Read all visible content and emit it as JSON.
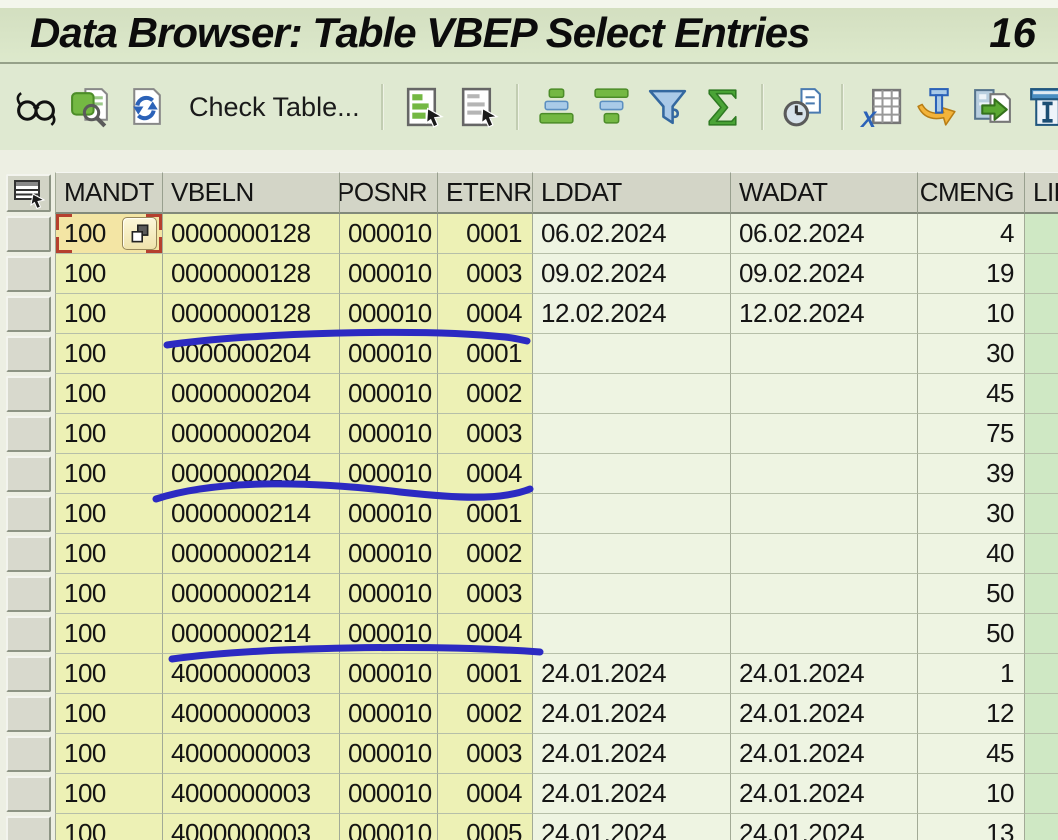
{
  "title": {
    "text": "Data Browser: Table VBEP Select Entries",
    "count": "16"
  },
  "toolbar": {
    "check_table_label": "Check Table...",
    "icon_groups": [
      [
        "display-glasses",
        "find",
        "refresh"
      ],
      [
        "choose-details",
        "display-details"
      ],
      [
        "sort-ascending",
        "sort-descending",
        "filter",
        "sum"
      ],
      [
        "refresh-interval"
      ],
      [
        "excel-view",
        "word-processing",
        "local-file",
        "text-insert"
      ]
    ]
  },
  "table": {
    "columns": [
      {
        "key": "mandt",
        "label": "MANDT"
      },
      {
        "key": "vbeln",
        "label": "VBELN"
      },
      {
        "key": "posnr",
        "label": "POSNR"
      },
      {
        "key": "etenr",
        "label": "ETENR"
      },
      {
        "key": "lddat",
        "label": "LDDAT"
      },
      {
        "key": "wadat",
        "label": "WADAT"
      },
      {
        "key": "cmeng",
        "label": "CMENG"
      },
      {
        "key": "lifsp",
        "label": "LIF"
      }
    ],
    "rows": [
      {
        "mandt": "100",
        "vbeln": "0000000128",
        "posnr": "000010",
        "etenr": "0001",
        "lddat": "06.02.2024",
        "wadat": "06.02.2024",
        "cmeng": "4",
        "lifsp": ""
      },
      {
        "mandt": "100",
        "vbeln": "0000000128",
        "posnr": "000010",
        "etenr": "0003",
        "lddat": "09.02.2024",
        "wadat": "09.02.2024",
        "cmeng": "19",
        "lifsp": ""
      },
      {
        "mandt": "100",
        "vbeln": "0000000128",
        "posnr": "000010",
        "etenr": "0004",
        "lddat": "12.02.2024",
        "wadat": "12.02.2024",
        "cmeng": "10",
        "lifsp": ""
      },
      {
        "mandt": "100",
        "vbeln": "0000000204",
        "posnr": "000010",
        "etenr": "0001",
        "lddat": "",
        "wadat": "",
        "cmeng": "30",
        "lifsp": ""
      },
      {
        "mandt": "100",
        "vbeln": "0000000204",
        "posnr": "000010",
        "etenr": "0002",
        "lddat": "",
        "wadat": "",
        "cmeng": "45",
        "lifsp": ""
      },
      {
        "mandt": "100",
        "vbeln": "0000000204",
        "posnr": "000010",
        "etenr": "0003",
        "lddat": "",
        "wadat": "",
        "cmeng": "75",
        "lifsp": ""
      },
      {
        "mandt": "100",
        "vbeln": "0000000204",
        "posnr": "000010",
        "etenr": "0004",
        "lddat": "",
        "wadat": "",
        "cmeng": "39",
        "lifsp": ""
      },
      {
        "mandt": "100",
        "vbeln": "0000000214",
        "posnr": "000010",
        "etenr": "0001",
        "lddat": "",
        "wadat": "",
        "cmeng": "30",
        "lifsp": ""
      },
      {
        "mandt": "100",
        "vbeln": "0000000214",
        "posnr": "000010",
        "etenr": "0002",
        "lddat": "",
        "wadat": "",
        "cmeng": "40",
        "lifsp": ""
      },
      {
        "mandt": "100",
        "vbeln": "0000000214",
        "posnr": "000010",
        "etenr": "0003",
        "lddat": "",
        "wadat": "",
        "cmeng": "50",
        "lifsp": ""
      },
      {
        "mandt": "100",
        "vbeln": "0000000214",
        "posnr": "000010",
        "etenr": "0004",
        "lddat": "",
        "wadat": "",
        "cmeng": "50",
        "lifsp": ""
      },
      {
        "mandt": "100",
        "vbeln": "4000000003",
        "posnr": "000010",
        "etenr": "0001",
        "lddat": "24.01.2024",
        "wadat": "24.01.2024",
        "cmeng": "1",
        "lifsp": ""
      },
      {
        "mandt": "100",
        "vbeln": "4000000003",
        "posnr": "000010",
        "etenr": "0002",
        "lddat": "24.01.2024",
        "wadat": "24.01.2024",
        "cmeng": "12",
        "lifsp": ""
      },
      {
        "mandt": "100",
        "vbeln": "4000000003",
        "posnr": "000010",
        "etenr": "0003",
        "lddat": "24.01.2024",
        "wadat": "24.01.2024",
        "cmeng": "45",
        "lifsp": ""
      },
      {
        "mandt": "100",
        "vbeln": "4000000003",
        "posnr": "000010",
        "etenr": "0004",
        "lddat": "24.01.2024",
        "wadat": "24.01.2024",
        "cmeng": "10",
        "lifsp": ""
      },
      {
        "mandt": "100",
        "vbeln": "4000000003",
        "posnr": "000010",
        "etenr": "0005",
        "lddat": "24.01.2024",
        "wadat": "24.01.2024",
        "cmeng": "13",
        "lifsp": ""
      }
    ],
    "selected_cell": {
      "row_index": 0,
      "column": "mandt",
      "value": "100"
    }
  },
  "annotations": {
    "ink_color": "#2c2ac2",
    "underlined_row_numbers": [
      3,
      7,
      11
    ],
    "underlined_entries": [
      "0000000128 000010 0004",
      "0000000204 000010 0004",
      "0000000214 000010 0004"
    ]
  },
  "colors": {
    "titlebar_bg": "#d8e4c6",
    "toolbar_bg": "#dfe9d1",
    "header_cell_bg": "#d3d5c7",
    "key_cell_bg": "#edf1b5",
    "value_cell_bg": "#eef4e2",
    "last_column_bg": "#cfe8c4",
    "selected_cell_bg": "#f3e5a4",
    "selection_marker_red": "#b5402e",
    "annotation_blue": "#2c2ac2"
  }
}
